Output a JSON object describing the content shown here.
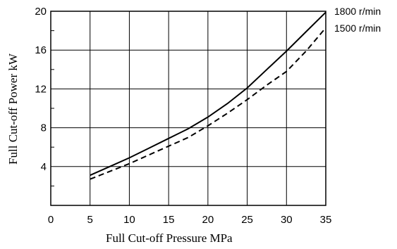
{
  "chart_data": {
    "type": "line",
    "title": "",
    "xlabel": "Full Cut-off  Pressure  MPa",
    "ylabel": "Full Cut-off Power  kW",
    "xlim": [
      0,
      35
    ],
    "ylim": [
      0,
      20
    ],
    "x_ticks": [
      "0",
      "5",
      "10",
      "15",
      "20",
      "25",
      "30",
      "35"
    ],
    "y_ticks": [
      "4",
      "8",
      "12",
      "16",
      "20"
    ],
    "grid": true,
    "legend": "right",
    "series": [
      {
        "name": "1800 r/min",
        "style": "solid",
        "color": "#000000",
        "x": [
          5,
          7.5,
          10,
          12.5,
          15,
          17.5,
          20,
          22.5,
          25,
          27.5,
          30,
          32.5,
          35
        ],
        "y": [
          3.1,
          4.0,
          4.9,
          5.9,
          6.9,
          7.9,
          9.1,
          10.5,
          12.1,
          14.0,
          15.9,
          17.9,
          19.9
        ]
      },
      {
        "name": "1500 r/min",
        "style": "dashed",
        "color": "#000000",
        "x": [
          5,
          7.5,
          10,
          12.5,
          15,
          17.5,
          20,
          22.5,
          25,
          27.5,
          30,
          32.5,
          35
        ],
        "y": [
          2.7,
          3.5,
          4.3,
          5.2,
          6.1,
          7.0,
          8.2,
          9.5,
          10.9,
          12.4,
          13.8,
          15.9,
          18.3
        ]
      }
    ]
  }
}
